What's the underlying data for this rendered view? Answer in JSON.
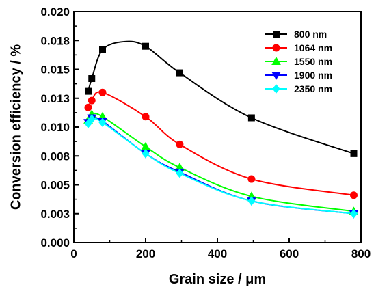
{
  "chart_data": {
    "type": "line",
    "xlabel": "Grain size / μm",
    "ylabel": "Conversion efficiency / %",
    "xlim": [
      0,
      800
    ],
    "ylim": [
      0,
      0.02
    ],
    "x_ticks": [
      0,
      200,
      400,
      600,
      800
    ],
    "x_tick_labels": [
      "0",
      "200",
      "400",
      "600",
      "800"
    ],
    "y_ticks": [
      0,
      0.0025,
      0.005,
      0.0075,
      0.01,
      0.0125,
      0.015,
      0.0175,
      0.02
    ],
    "y_tick_labels": [
      "0.000",
      "0.003",
      "0.005",
      "0.008",
      "0.010",
      "0.013",
      "0.015",
      "0.018",
      "0.020"
    ],
    "grid": false,
    "legend_position": "top-right",
    "series": [
      {
        "name": "800 nm",
        "color": "#000000",
        "marker": "square",
        "x": [
          40,
          50,
          80,
          200,
          295,
          495,
          780
        ],
        "y": [
          0.0131,
          0.0142,
          0.0167,
          0.017,
          0.0147,
          0.0108,
          0.0077
        ],
        "curve_x": [
          40,
          50,
          80,
          140,
          200,
          295,
          495,
          780
        ],
        "curve_y": [
          0.0131,
          0.0142,
          0.0167,
          0.0174,
          0.017,
          0.0147,
          0.0108,
          0.0077
        ]
      },
      {
        "name": "1064 nm",
        "color": "#ff0000",
        "marker": "circle",
        "x": [
          40,
          50,
          80,
          200,
          295,
          495,
          780
        ],
        "y": [
          0.0117,
          0.0123,
          0.013,
          0.0109,
          0.0085,
          0.0055,
          0.0041
        ]
      },
      {
        "name": "1550 nm",
        "color": "#00ff00",
        "marker": "triangle-up",
        "x": [
          40,
          50,
          80,
          200,
          295,
          495,
          780
        ],
        "y": [
          0.0106,
          0.0111,
          0.0109,
          0.0083,
          0.0065,
          0.004,
          0.0027
        ]
      },
      {
        "name": "1900 nm",
        "color": "#0000ff",
        "marker": "triangle-down",
        "x": [
          40,
          50,
          80,
          200,
          295,
          495,
          780
        ],
        "y": [
          0.0104,
          0.0108,
          0.0105,
          0.0077,
          0.0061,
          0.0036,
          0.0025
        ]
      },
      {
        "name": "2350 nm",
        "color": "#00ffff",
        "marker": "diamond",
        "x": [
          40,
          50,
          80,
          200,
          295,
          495,
          780
        ],
        "y": [
          0.0103,
          0.0107,
          0.0104,
          0.0077,
          0.006,
          0.0036,
          0.0025
        ]
      }
    ]
  }
}
